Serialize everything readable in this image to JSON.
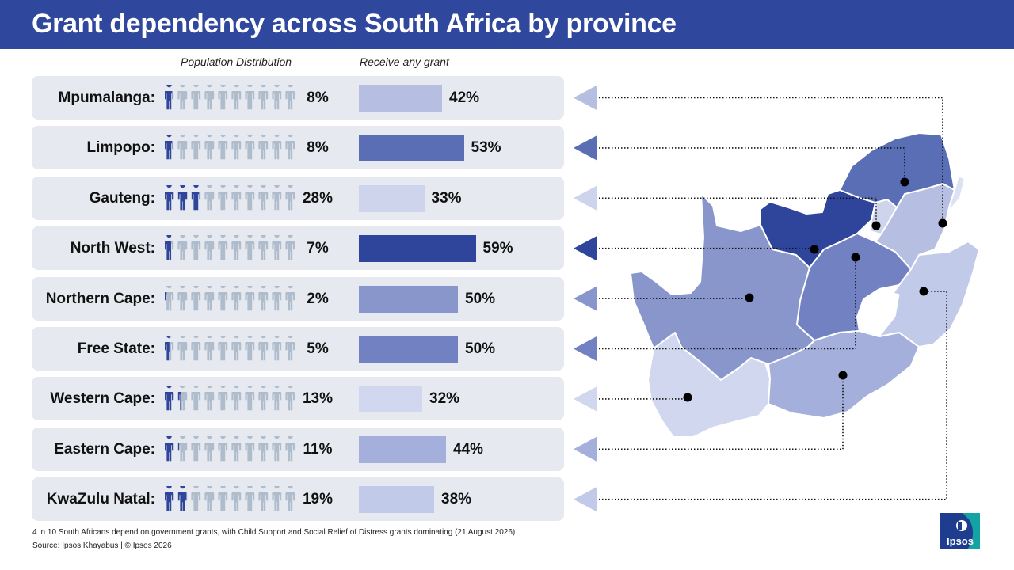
{
  "title": "Grant dependency across South Africa by province",
  "column_headers": {
    "population": "Population Distribution",
    "grant": "Receive any grant"
  },
  "rows": [
    {
      "label": "Mpumalanga:",
      "population_label": "8%",
      "grant_label": "42%",
      "population": 8,
      "grant": 42,
      "color": "#b6bfe1"
    },
    {
      "label": "Limpopo:",
      "population_label": "8%",
      "grant_label": "53%",
      "population": 8,
      "grant": 53,
      "color": "#5a6eb6"
    },
    {
      "label": "Gauteng:",
      "population_label": "28%",
      "grant_label": "33%",
      "population": 28,
      "grant": 33,
      "color": "#cdd4ec"
    },
    {
      "label": "North West:",
      "population_label": "7%",
      "grant_label": "59%",
      "population": 7,
      "grant": 59,
      "color": "#2f459b"
    },
    {
      "label": "Northern Cape:",
      "population_label": "2%",
      "grant_label": "50%",
      "population": 2,
      "grant": 50,
      "color": "#8896cb"
    },
    {
      "label": "Free State:",
      "population_label": "5%",
      "grant_label": "50%",
      "population": 5,
      "grant": 50,
      "color": "#7181c2"
    },
    {
      "label": "Western Cape:",
      "population_label": "13%",
      "grant_label": "32%",
      "population": 13,
      "grant": 32,
      "color": "#d0d7ee"
    },
    {
      "label": "Eastern Cape:",
      "population_label": "11%",
      "grant_label": "44%",
      "population": 11,
      "grant": 44,
      "color": "#a4afdb"
    },
    {
      "label": "KwaZulu Natal:",
      "population_label": "19%",
      "grant_label": "38%",
      "population": 19,
      "grant": 38,
      "color": "#c2cae9"
    }
  ],
  "chart_data": {
    "type": "bar",
    "categories": [
      "Mpumalanga",
      "Limpopo",
      "Gauteng",
      "North West",
      "Northern Cape",
      "Free State",
      "Western Cape",
      "Eastern Cape",
      "KwaZulu Natal"
    ],
    "series": [
      {
        "name": "Population Distribution",
        "values": [
          8,
          8,
          28,
          7,
          2,
          5,
          13,
          11,
          19
        ]
      },
      {
        "name": "Receive any grant",
        "values": [
          42,
          53,
          33,
          59,
          50,
          50,
          32,
          44,
          38
        ]
      }
    ],
    "title": "Grant dependency across South Africa by province",
    "unit": "%",
    "population_icons_per_row": 10,
    "population_icon_step_percent": 10
  },
  "colors": {
    "header": "#2f479c",
    "icon_filled": "#2f459b",
    "icon_empty": "#aebccb",
    "row_background": "#e6e9ef"
  },
  "footnote": "4 in 10 South Africans depend on government grants, with Child Support and Social Relief of Distress grants dominating (21 August 2026)",
  "source": "Source: Ipsos Khayabus  |  © Ipsos 2026",
  "logo_text": "Ipsos"
}
